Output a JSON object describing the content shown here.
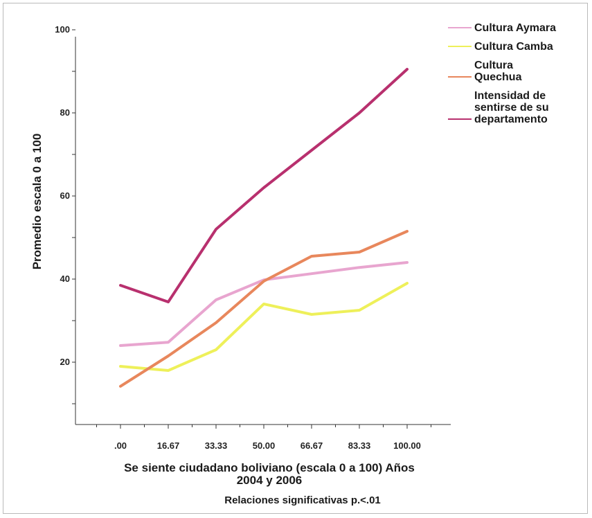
{
  "chart_data": {
    "type": "line",
    "x": [
      ".00",
      "16.67",
      "33.33",
      "50.00",
      "66.67",
      "83.33",
      "100.00"
    ],
    "ylim": [
      5,
      105
    ],
    "yticks": [
      20,
      40,
      60,
      80,
      100
    ],
    "ylabel": "Promedio escala 0 a 100",
    "xlabel_lines": [
      "Se siente ciudadano boliviano (escala 0 a 100) Años",
      "2004 y 2006"
    ],
    "note": "Relaciones significativas p.<.01",
    "legend_position": "top-right",
    "grid": false,
    "series": [
      {
        "name_lines": [
          "Cultura Aymara"
        ],
        "color": "#e8a5cf",
        "values": [
          24,
          24.8,
          35,
          39.8,
          41.3,
          42.8,
          44
        ]
      },
      {
        "name_lines": [
          "Cultura Camba"
        ],
        "color": "#eef05a",
        "values": [
          19,
          18,
          23,
          34,
          31.5,
          32.5,
          39
        ]
      },
      {
        "name_lines": [
          "Cultura",
          "Quechua"
        ],
        "color": "#e8875c",
        "values": [
          14.2,
          21.5,
          29.5,
          39.5,
          45.5,
          46.5,
          51.5
        ]
      },
      {
        "name_lines": [
          "Intensidad de",
          "sentirse de su",
          "departamento"
        ],
        "color": "#b8306e",
        "values": [
          38.5,
          34.5,
          52,
          62,
          71,
          80,
          90.5
        ]
      }
    ]
  }
}
